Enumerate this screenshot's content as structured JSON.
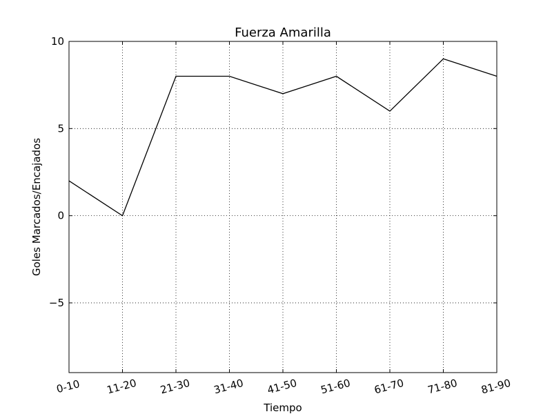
{
  "chart_data": {
    "type": "line",
    "title": "Fuerza Amarilla",
    "xlabel": "Tiempo",
    "ylabel": "Goles Marcados/Encajados",
    "categories": [
      "0-10",
      "11-20",
      "21-30",
      "31-40",
      "41-50",
      "51-60",
      "61-70",
      "71-80",
      "81-90"
    ],
    "values": [
      2,
      0,
      8,
      8,
      7,
      8,
      6,
      9,
      8
    ],
    "ylim": [
      -9,
      10
    ],
    "yticks": [
      10,
      5,
      0,
      -5
    ],
    "ytick_labels": [
      "10",
      "5",
      "0",
      "−5"
    ],
    "grid": true,
    "line_color": "#000000"
  }
}
